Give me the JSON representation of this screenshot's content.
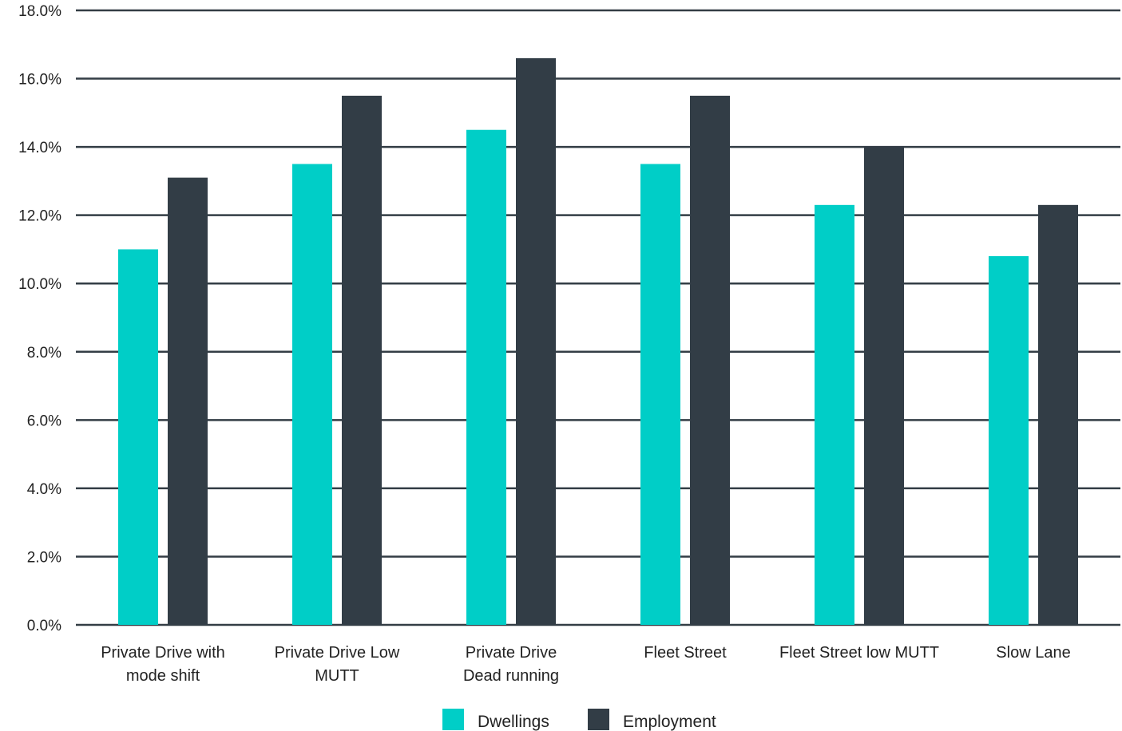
{
  "chart_data": {
    "type": "bar",
    "title": "",
    "xlabel": "",
    "ylabel": "",
    "categories": [
      [
        "Private Drive with",
        "mode shift"
      ],
      [
        "Private Drive Low",
        "MUTT"
      ],
      [
        "Private Drive",
        "Dead running"
      ],
      [
        "Fleet Street"
      ],
      [
        "Fleet Street low MUTT"
      ],
      [
        "Slow Lane"
      ]
    ],
    "series": [
      {
        "name": "Dwellings",
        "color": "#00cec7",
        "values": [
          11.0,
          13.5,
          14.5,
          13.5,
          12.3,
          10.8
        ]
      },
      {
        "name": "Employment",
        "color": "#323d46",
        "values": [
          13.1,
          15.5,
          16.6,
          15.5,
          14.0,
          12.3
        ]
      }
    ],
    "ylim": [
      0,
      18
    ],
    "yticks": [
      0,
      2,
      4,
      6,
      8,
      10,
      12,
      14,
      16,
      18
    ],
    "ytick_labels": [
      "0.0%",
      "2.0%",
      "4.0%",
      "6.0%",
      "8.0%",
      "10.0%",
      "12.0%",
      "14.0%",
      "16.0%",
      "18.0%"
    ],
    "grid": true,
    "legend_position": "bottom-center"
  }
}
